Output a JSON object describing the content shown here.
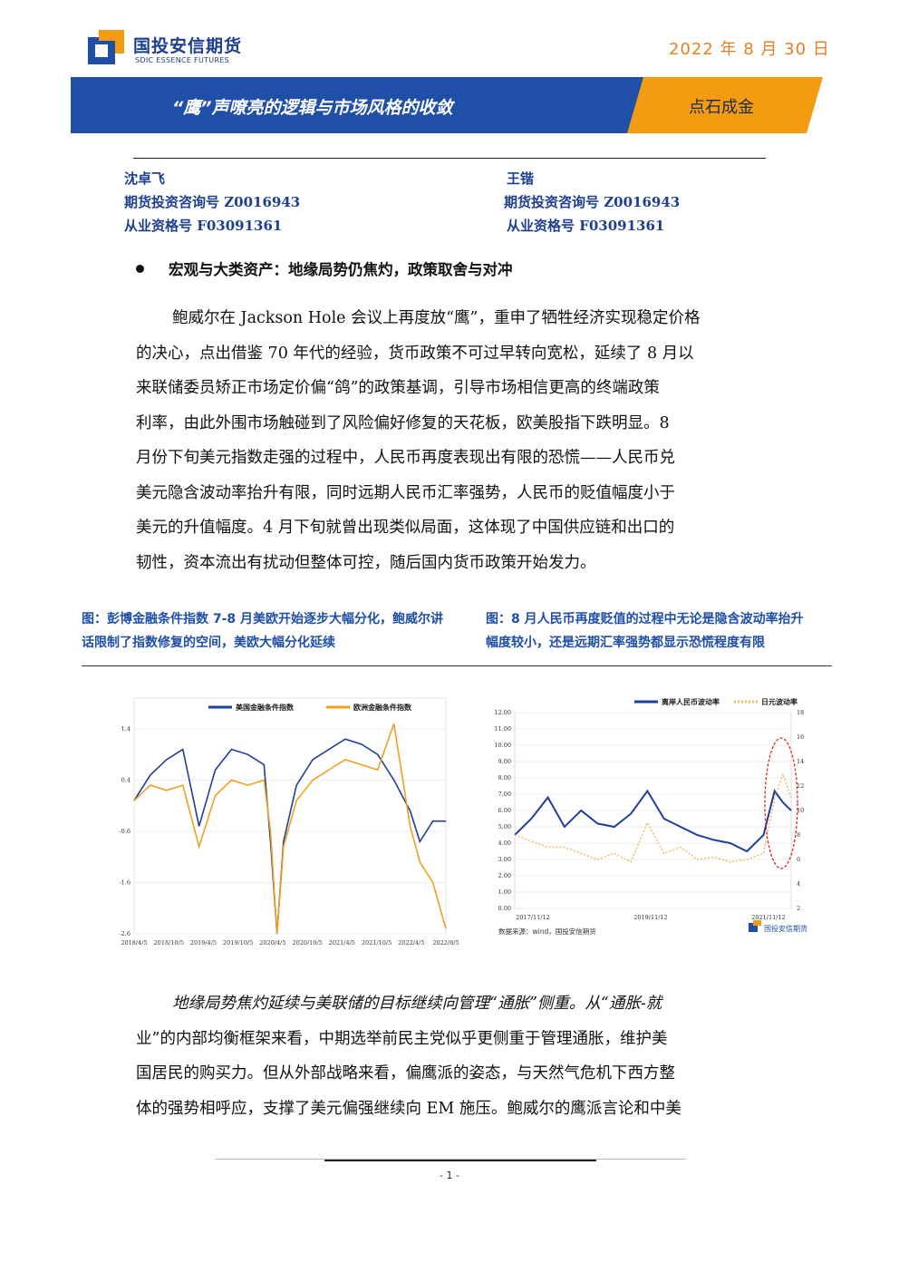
{
  "header": {
    "logo_cn": "国投安信期货",
    "logo_en": "SDIC ESSENCE FUTURES",
    "date": "2022 年 8 月 30 日",
    "title": "“鹰”声嘹亮的逻辑与市场风格的收敛",
    "tag": "点石成金",
    "colors": {
      "brand_blue": "#1f4fa6",
      "accent_orange": "#f39c12",
      "date_orange": "#e67e22"
    }
  },
  "authors": [
    {
      "name": "沈卓飞",
      "consult_no": "期货投资咨询号 Z0016943",
      "cert_no": "从业资格号 F03091361"
    },
    {
      "name": "王锴",
      "consult_no": "期货投资咨询号 Z0016943",
      "cert_no": "从业资格号 F03091361"
    }
  ],
  "section1": {
    "heading": "宏观与大类资产：地缘局势仍焦灼，政策取舍与对冲",
    "lines": [
      "鲍威尔在 Jackson Hole 会议上再度放“鹰”，重申了牺牲经济实现稳定价格",
      "的决心，点出借鉴 70 年代的经验，货币政策不可过早转向宽松，延续了 8 月以",
      "来联储委员矫正市场定价偏“鸽”的政策基调，引导市场相信更高的终端政策",
      "利率，由此外围市场触碰到了风险偏好修复的天花板，欧美股指下跌明显。8",
      "月份下旬美元指数走强的过程中，人民币再度表现出有限的恐慌——人民币兑",
      "美元隐含波动率抬升有限，同时远期人民币汇率强势，人民币的贬值幅度小于",
      "美元的升值幅度。4 月下旬就曾出现类似局面，这体现了中国供应链和出口的",
      "韧性，资本流出有扰动但整体可控，随后国内货币政策开始发力。"
    ]
  },
  "figures": {
    "left_caption": [
      "图：彭博金融条件指数 7-8 月美欧开始逐步大幅分化，鲍威尔讲",
      "话限制了指数修复的空间，美欧大幅分化延续"
    ],
    "right_caption": [
      "图：8 月人民币再度贬值的过程中无论是隐含波动率抬升",
      "幅度较小，还是远期汇率强势都显示恐慌程度有限"
    ]
  },
  "chart_data": [
    {
      "type": "line",
      "title": "",
      "legend": [
        "美国金融条件指数",
        "欧洲金融条件指数"
      ],
      "legend_placement": "top",
      "ylim": [
        -2.6,
        2.0
      ],
      "y_ticks": [
        "1.4",
        "0.4",
        "-0.6",
        "-1.6",
        "-2.6"
      ],
      "x_ticks": [
        "2018/4/5",
        "2018/10/5",
        "2019/4/5",
        "2019/10/5",
        "2020/4/5",
        "2020/10/5",
        "2021/4/5",
        "2021/10/5",
        "2022/4/5",
        "2022/8/5"
      ],
      "series": [
        {
          "name": "美国金融条件指数",
          "color": "#1f3f99",
          "x": [
            0,
            0.25,
            0.5,
            0.75,
            1.0,
            1.25,
            1.5,
            1.75,
            2.0,
            2.1,
            2.2,
            2.3,
            2.5,
            2.75,
            3.0,
            3.25,
            3.5,
            3.75,
            4.0,
            4.25,
            4.4,
            4.6,
            4.8
          ],
          "values": [
            0.0,
            0.5,
            0.8,
            1.0,
            -0.5,
            0.6,
            1.0,
            0.9,
            0.7,
            -0.8,
            -2.6,
            -0.8,
            0.3,
            0.8,
            1.0,
            1.2,
            1.1,
            0.9,
            0.4,
            -0.2,
            -0.8,
            -0.4,
            -0.4
          ]
        },
        {
          "name": "欧洲金融条件指数",
          "color": "#f0a020",
          "x": [
            0,
            0.25,
            0.5,
            0.75,
            1.0,
            1.25,
            1.5,
            1.75,
            2.0,
            2.1,
            2.2,
            2.3,
            2.5,
            2.75,
            3.0,
            3.25,
            3.5,
            3.75,
            4.0,
            4.25,
            4.4,
            4.6,
            4.8
          ],
          "values": [
            0.0,
            0.3,
            0.2,
            0.3,
            -0.9,
            0.1,
            0.4,
            0.3,
            0.4,
            -0.6,
            -2.6,
            -0.9,
            0.0,
            0.4,
            0.6,
            0.8,
            0.7,
            0.6,
            1.5,
            -0.5,
            -1.2,
            -1.6,
            -2.5
          ]
        }
      ]
    },
    {
      "type": "line",
      "title": "",
      "legend": [
        "离岸人民币波动率",
        "日元波动率"
      ],
      "legend_placement": "top",
      "ylim_left": [
        0,
        12
      ],
      "ylim_right": [
        2,
        18
      ],
      "y_ticks_left": [
        "12.00",
        "11.00",
        "10.00",
        "9.00",
        "8.00",
        "7.00",
        "6.00",
        "5.00",
        "4.00",
        "3.00",
        "2.00",
        "1.00",
        "0.00"
      ],
      "y_ticks_right": [
        "18",
        "16",
        "14",
        "12",
        "10",
        "8",
        "6",
        "4",
        "2"
      ],
      "x_ticks": [
        "2017/11/12",
        "2019/11/12",
        "2021/11/12"
      ],
      "series": [
        {
          "name": "离岸人民币波动率",
          "axis": "left",
          "color": "#1f3f99",
          "x": [
            0,
            0.3,
            0.6,
            0.9,
            1.2,
            1.5,
            1.8,
            2.1,
            2.4,
            2.7,
            3.0,
            3.3,
            3.6,
            3.9,
            4.2,
            4.5,
            4.7,
            4.85,
            5.0
          ],
          "values": [
            4.5,
            5.5,
            6.8,
            5.0,
            6.0,
            5.2,
            5.0,
            5.8,
            7.2,
            5.5,
            5.0,
            4.5,
            4.2,
            4.0,
            3.5,
            4.5,
            7.2,
            6.5,
            6.0
          ]
        },
        {
          "name": "日元波动率",
          "axis": "right",
          "color": "#f0b86a",
          "x": [
            0,
            0.3,
            0.6,
            0.9,
            1.2,
            1.5,
            1.8,
            2.1,
            2.4,
            2.7,
            3.0,
            3.3,
            3.6,
            3.9,
            4.2,
            4.5,
            4.7,
            4.85,
            5.0
          ],
          "values": [
            8.0,
            7.5,
            7.0,
            7.0,
            6.5,
            6.0,
            6.5,
            5.8,
            9.0,
            6.5,
            7.0,
            6.0,
            6.2,
            5.8,
            6.0,
            6.5,
            11.0,
            13.0,
            11.0
          ]
        }
      ],
      "annotation": "red dashed ellipse highlighting latest period",
      "source": "数据来源：wind，国投安信期货",
      "watermark_logo": "国投安信期货"
    }
  ],
  "section2": {
    "lines": [
      "地缘局势焦灼延续与美联储的目标继续向管理“通胀”侧重。从“通胀-就",
      "业”的内部均衡框架来看，中期选举前民主党似乎更侧重于管理通胀，维护美",
      "国居民的购买力。但从外部战略来看，偏鹰派的姿态，与天然气危机下西方整",
      "体的强势相呼应，支撑了美元偏强继续向 EM 施压。鲍威尔的鹰派言论和中美"
    ]
  },
  "footer": {
    "page": "- 1 -"
  }
}
